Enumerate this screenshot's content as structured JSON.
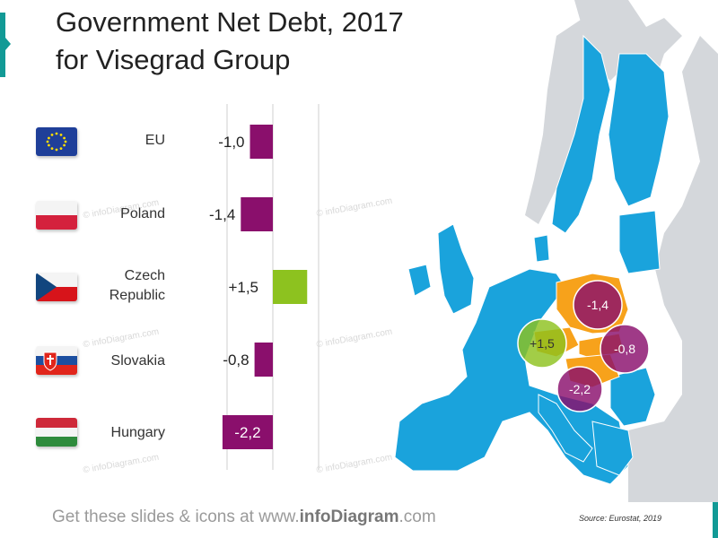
{
  "title_line1": "Government Net Debt, 2017",
  "title_line2": "for Visegrad Group",
  "footer": {
    "prefix": "Get these slides & icons at www.",
    "brand": "infoDiagram",
    "suffix": ".com"
  },
  "source": "Source: Eurostat, 2019",
  "watermark": "© infoDiagram.com",
  "colors": {
    "negative": "#8a0f6c",
    "positive": "#8dc21f",
    "map_eu": "#1aa3dc",
    "map_visegrad": "#f7a21b",
    "map_other": "#d4d7db",
    "accent": "#129a96"
  },
  "rows": [
    {
      "label": "EU",
      "flag": "eu-flag-icon"
    },
    {
      "label": "Poland",
      "flag": "poland-flag-icon"
    },
    {
      "label": "Czech Republic",
      "flag": "czech-flag-icon"
    },
    {
      "label": "Slovakia",
      "flag": "slovakia-flag-icon"
    },
    {
      "label": "Hungary",
      "flag": "hungary-flag-icon"
    }
  ],
  "chart_data": {
    "type": "bar",
    "orientation": "horizontal",
    "categories": [
      "EU",
      "Poland",
      "Czech Republic",
      "Slovakia",
      "Hungary"
    ],
    "values": [
      -1.0,
      -1.4,
      1.5,
      -0.8,
      -2.2
    ],
    "value_labels": [
      "-1,0",
      "-1,4",
      "+1,5",
      "-0,8",
      "-2,2"
    ],
    "xlim": [
      -3,
      3
    ],
    "grid": true
  },
  "map_bubbles": [
    {
      "country": "Poland",
      "label": "-1,4",
      "value": -1.4
    },
    {
      "country": "Czech Republic",
      "label": "+1,5",
      "value": 1.5
    },
    {
      "country": "Slovakia",
      "label": "-0,8",
      "value": -0.8
    },
    {
      "country": "Hungary",
      "label": "-2,2",
      "value": -2.2
    }
  ]
}
